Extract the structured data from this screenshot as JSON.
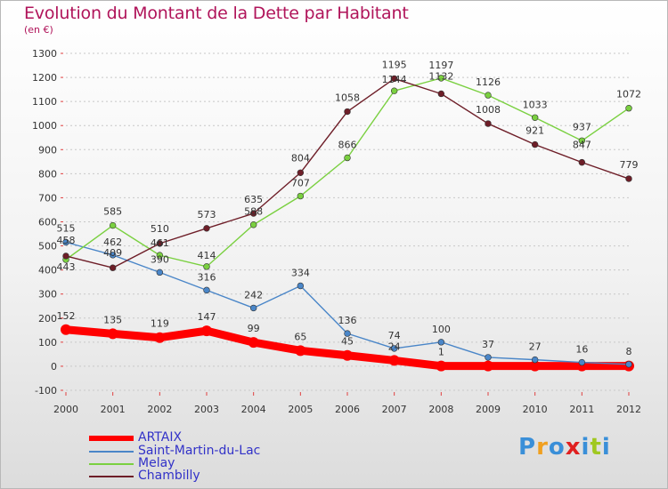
{
  "header": {
    "title": "Evolution du Montant de la Dette par Habitant",
    "subtitle": "(en €)"
  },
  "logo": {
    "text": "Proxiti"
  },
  "chart_data": {
    "type": "line",
    "title": "Evolution du Montant de la Dette par Habitant",
    "subtitle": "(en €)",
    "xlabel": "",
    "ylabel": "",
    "x": [
      "2000",
      "2001",
      "2002",
      "2003",
      "2004",
      "2005",
      "2006",
      "2007",
      "2008",
      "2009",
      "2010",
      "2011",
      "2012"
    ],
    "ylim": [
      -100,
      1300
    ],
    "yticks": [
      -100,
      0,
      100,
      200,
      300,
      400,
      500,
      600,
      700,
      800,
      900,
      1000,
      1100,
      1200,
      1300
    ],
    "grid": "horizontal dashed",
    "legend_position": "bottom-left",
    "series": [
      {
        "name": "ARTAIX",
        "color": "#ff0000",
        "values": [
          152,
          135,
          119,
          147,
          99,
          65,
          45,
          24,
          1,
          1,
          1,
          1,
          1
        ],
        "labels": [
          "152",
          "135",
          "119",
          "147",
          "99",
          "65",
          "45",
          "24",
          "1",
          "",
          "",
          "",
          ""
        ]
      },
      {
        "name": "Saint-Martin-du-Lac",
        "color": "#4a86c8",
        "values": [
          515,
          462,
          390,
          316,
          242,
          334,
          136,
          74,
          100,
          37,
          27,
          16,
          8
        ],
        "labels": [
          "515",
          "462",
          "390",
          "316",
          "242",
          "334",
          "136",
          "74",
          "100",
          "37",
          "27",
          "16",
          "8"
        ]
      },
      {
        "name": "Melay",
        "color": "#7ad040",
        "values": [
          443,
          585,
          461,
          414,
          588,
          707,
          866,
          1144,
          1197,
          1126,
          1033,
          937,
          1072
        ],
        "labels": [
          "443",
          "585",
          "461",
          "414",
          "588",
          "707",
          "866",
          "1144",
          "1197",
          "1126",
          "1033",
          "937",
          "1072"
        ]
      },
      {
        "name": "Chambilly",
        "color": "#6e1e28",
        "values": [
          458,
          409,
          510,
          573,
          635,
          804,
          1058,
          1195,
          1132,
          1008,
          921,
          847,
          779
        ],
        "labels": [
          "458",
          "409",
          "510",
          "573",
          "635",
          "804",
          "1058",
          "1195",
          "1132",
          "1008",
          "921",
          "847",
          "779"
        ]
      }
    ]
  }
}
